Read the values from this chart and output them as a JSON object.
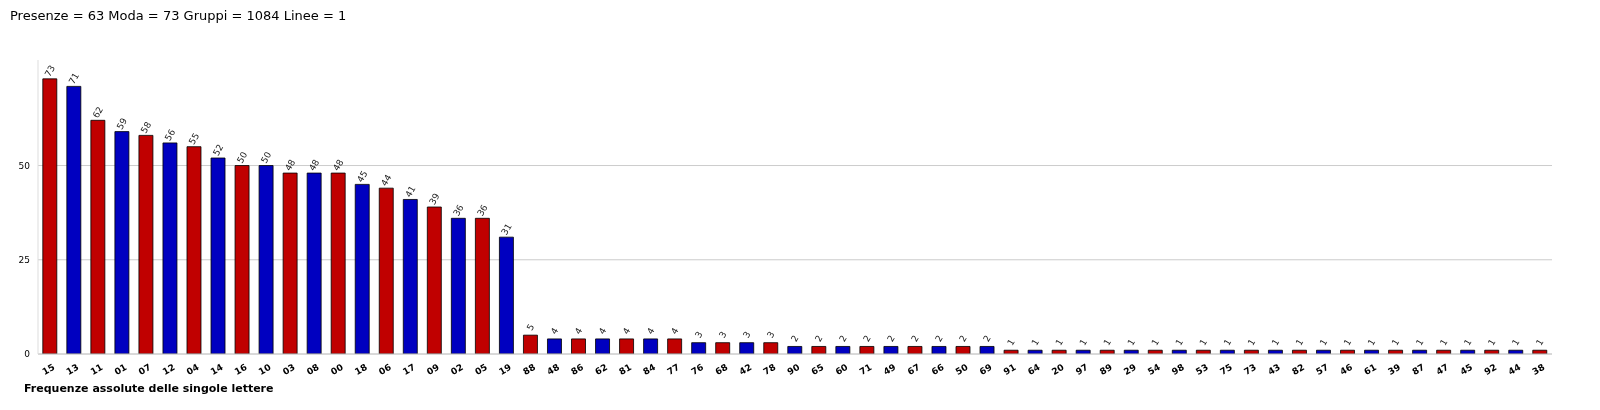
{
  "chart_data": {
    "type": "bar",
    "title": "Presenze = 63 Moda = 73 Gruppi = 1084 Linee = 1",
    "xlabel": "Frequenze assolute delle singole lettere",
    "categories": [
      "15",
      "13",
      "11",
      "01",
      "07",
      "12",
      "04",
      "14",
      "16",
      "10",
      "03",
      "08",
      "00",
      "18",
      "06",
      "17",
      "09",
      "02",
      "05",
      "19",
      "88",
      "48",
      "86",
      "62",
      "81",
      "84",
      "77",
      "76",
      "68",
      "42",
      "78",
      "90",
      "65",
      "60",
      "71",
      "49",
      "67",
      "66",
      "50",
      "69",
      "91",
      "64",
      "20",
      "97",
      "89",
      "29",
      "54",
      "98",
      "53",
      "75",
      "73",
      "43",
      "82",
      "57",
      "46",
      "61",
      "39",
      "87",
      "47",
      "45",
      "92",
      "44",
      "38"
    ],
    "values": [
      73,
      71,
      62,
      59,
      58,
      56,
      55,
      52,
      50,
      50,
      48,
      48,
      48,
      45,
      44,
      41,
      39,
      36,
      36,
      31,
      5,
      4,
      4,
      4,
      4,
      4,
      4,
      3,
      3,
      3,
      3,
      2,
      2,
      2,
      2,
      2,
      2,
      2,
      2,
      2,
      1,
      1,
      1,
      1,
      1,
      1,
      1,
      1,
      1,
      1,
      1,
      1,
      1,
      1,
      1,
      1,
      1,
      1,
      1,
      1,
      1,
      1,
      1
    ],
    "colors": [
      "#c00000",
      "#0000c0",
      "#c00000",
      "#0000c0",
      "#c00000",
      "#0000c0",
      "#c00000",
      "#0000c0",
      "#c00000",
      "#0000c0",
      "#c00000",
      "#0000c0",
      "#c00000",
      "#0000c0",
      "#c00000",
      "#0000c0",
      "#c00000",
      "#0000c0",
      "#c00000",
      "#0000c0",
      "#c00000",
      "#0000c0",
      "#c00000",
      "#0000c0",
      "#c00000",
      "#0000c0",
      "#c00000",
      "#0000c0",
      "#c00000",
      "#0000c0",
      "#c00000",
      "#0000c0",
      "#c00000",
      "#0000c0",
      "#c00000",
      "#0000c0",
      "#c00000",
      "#0000c0",
      "#c00000",
      "#0000c0",
      "#c00000",
      "#0000c0",
      "#c00000",
      "#0000c0",
      "#c00000",
      "#0000c0",
      "#c00000",
      "#0000c0",
      "#c00000",
      "#0000c0",
      "#c00000",
      "#0000c0",
      "#c00000",
      "#0000c0",
      "#c00000",
      "#0000c0",
      "#c00000",
      "#0000c0",
      "#c00000",
      "#0000c0",
      "#c00000",
      "#0000c0",
      "#c00000"
    ],
    "ylim": [
      0,
      78
    ],
    "yticks": [
      0,
      25,
      50
    ],
    "grid": "y",
    "data_labels": true
  }
}
